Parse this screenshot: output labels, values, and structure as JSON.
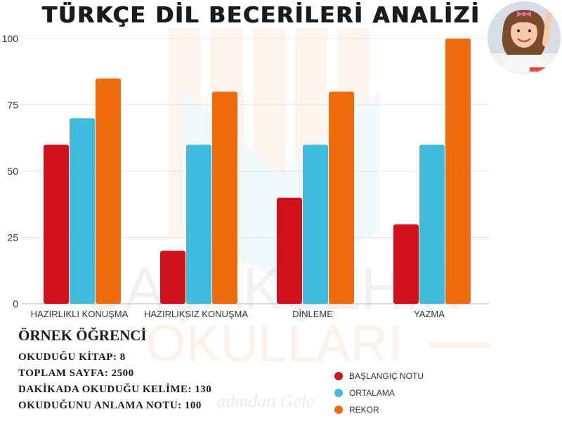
{
  "header": {
    "title": "TÜRKÇE DİL BECERİLERİ ANALİZİ"
  },
  "watermark": {
    "line1": "BAŞAKŞEHİR",
    "line2": "OKULLARI",
    "slogan": "admdan Gele"
  },
  "chart_data": {
    "type": "bar",
    "categories": [
      "HAZIRLIKLI KONUŞMA",
      "HAZIRLIKSIZ KONUŞMA",
      "DİNLEME",
      "YAZMA"
    ],
    "series": [
      {
        "name": "BAŞLANGIÇ NOTU",
        "values": [
          60,
          20,
          40,
          30
        ],
        "color": "#d0121a"
      },
      {
        "name": "ORTALAMA",
        "values": [
          70,
          60,
          60,
          60
        ],
        "color": "#41bbdc"
      },
      {
        "name": "REKOR",
        "values": [
          85,
          80,
          80,
          100
        ],
        "color": "#ef6c0e"
      }
    ],
    "ylim": [
      0,
      100
    ],
    "yticks": [
      0,
      25,
      50,
      75,
      100
    ],
    "grid": true,
    "legend": "bottom-right"
  },
  "student": {
    "heading": "ÖRNEK ÖĞRENCİ",
    "lines": [
      "OKUDUĞU KİTAP: 8",
      "TOPLAM SAYFA: 2500",
      "DAKİKADA OKUDUĞU KELİME: 130",
      "OKUDUĞUNU ANLAMA NOTU:  100"
    ]
  }
}
